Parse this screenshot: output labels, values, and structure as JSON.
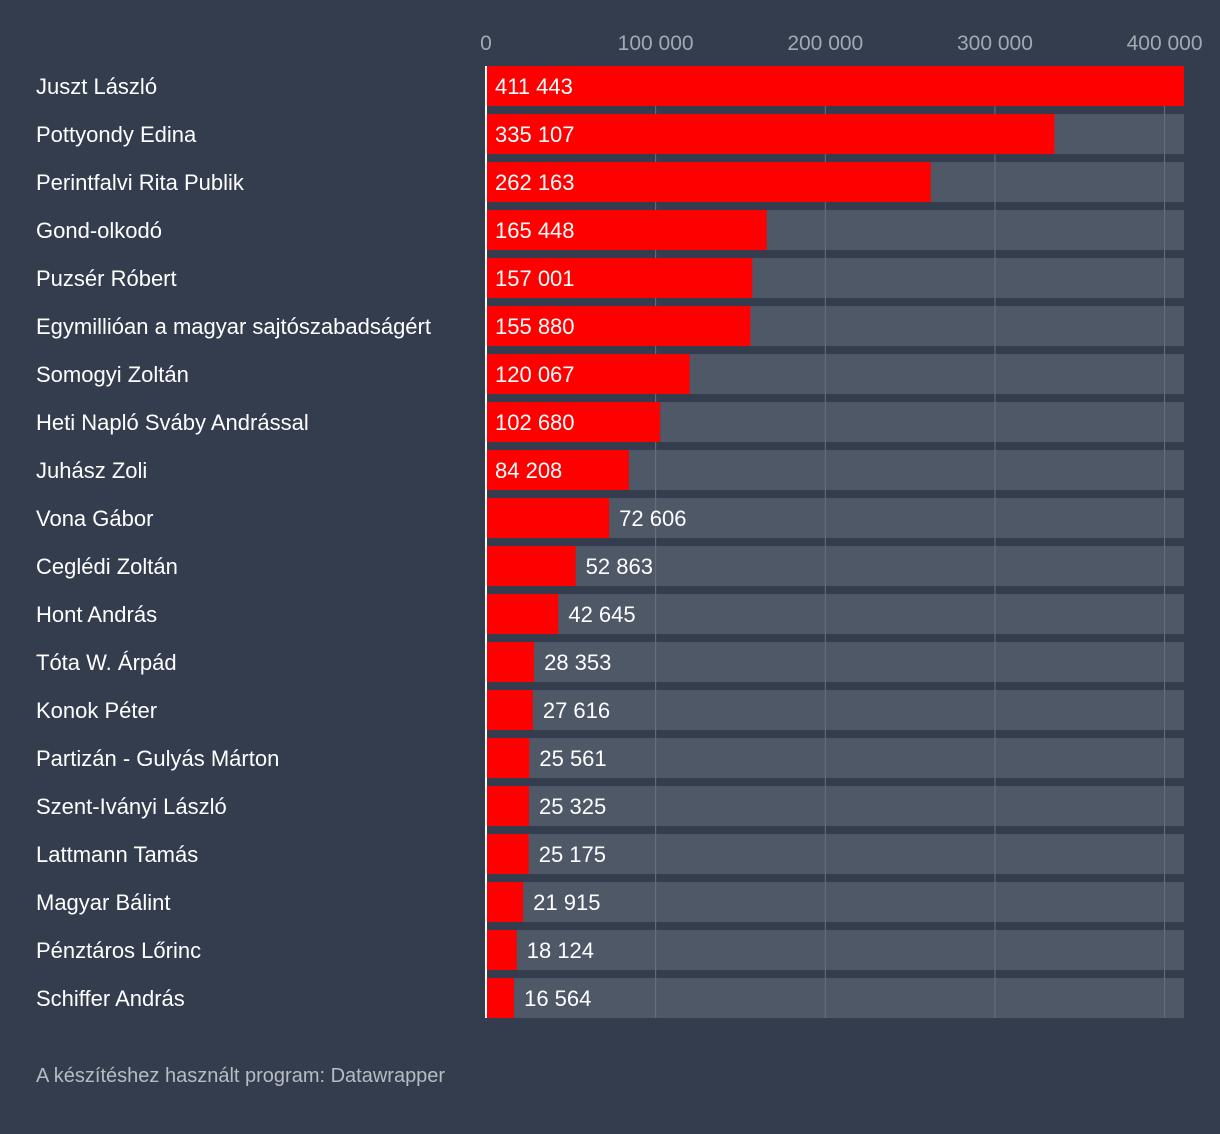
{
  "chart_data": {
    "type": "bar",
    "orientation": "horizontal",
    "categories": [
      "Juszt László",
      "Pottyondy Edina",
      "Perintfalvi Rita Publik",
      "Gond-olkodó",
      "Puzsér Róbert",
      "Egymillióan a magyar sajtószabadságért",
      "Somogyi Zoltán",
      "Heti Napló Sváby Andrással",
      "Juhász Zoli",
      "Vona Gábor",
      "Ceglédi Zoltán",
      "Hont András",
      "Tóta W. Árpád",
      "Konok Péter",
      "Partizán - Gulyás Márton",
      "Szent-Iványi László",
      "Lattmann Tamás",
      "Magyar Bálint",
      "Pénztáros Lőrinc",
      "Schiffer András"
    ],
    "values": [
      411443,
      335107,
      262163,
      165448,
      157001,
      155880,
      120067,
      102680,
      84208,
      72606,
      52863,
      42645,
      28353,
      27616,
      25561,
      25325,
      25175,
      21915,
      18124,
      16564
    ],
    "value_labels": [
      "411 443",
      "335 107",
      "262 163",
      "165 448",
      "157 001",
      "155 880",
      "120 067",
      "102 680",
      "84 208",
      "72 606",
      "52 863",
      "42 645",
      "28 353",
      "27 616",
      "25 561",
      "25 325",
      "25 175",
      "21 915",
      "18 124",
      "16 564"
    ],
    "xlim": [
      0,
      411443
    ],
    "ticks": [
      0,
      100000,
      200000,
      300000,
      400000
    ],
    "tick_labels": [
      "0",
      "100 000",
      "200 000",
      "300 000",
      "400 000"
    ],
    "tick_position": "top",
    "grid": true,
    "bar_color": "#ff0000",
    "track_color": "#4f5867",
    "background_color": "#333d4d"
  },
  "footer": {
    "credit": "A készítéshez használt program: Datawrapper"
  }
}
